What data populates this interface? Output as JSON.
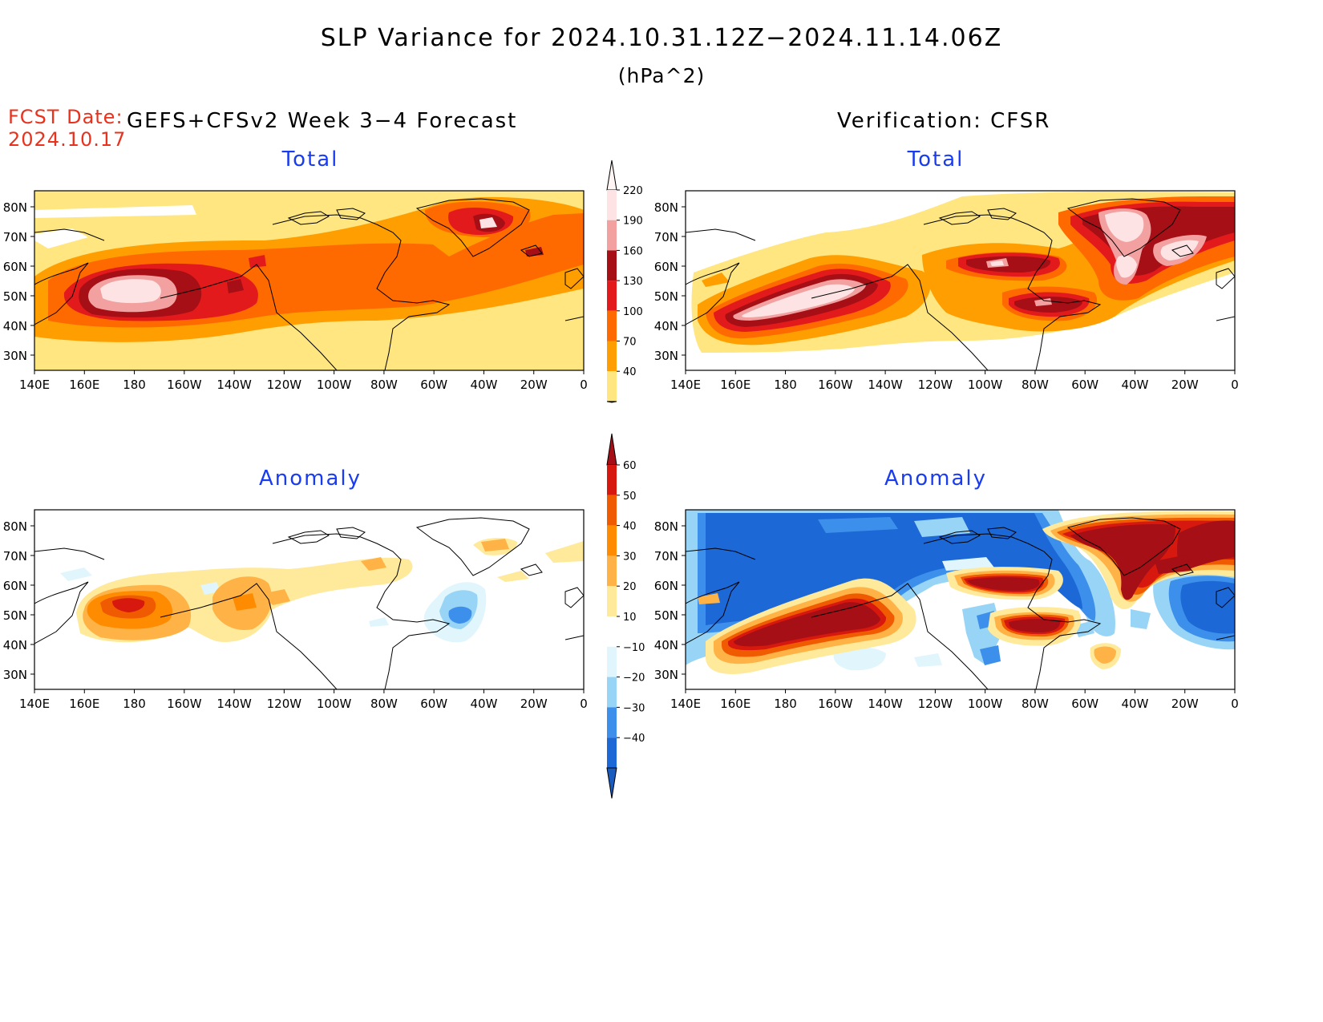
{
  "title": "SLP Variance for 2024.10.31.12Z−2024.11.14.06Z",
  "units": "(hPa^2)",
  "fcst_date_label": "FCST Date:",
  "fcst_date_value": "2024.10.17",
  "forecast_header": "GEFS+CFSv2 Week 3−4 Forecast",
  "verification_header": "Verification: CFSR",
  "panels": [
    {
      "id": "fcst-total",
      "title": "Total"
    },
    {
      "id": "verif-total",
      "title": "Total"
    },
    {
      "id": "fcst-anomaly",
      "title": "Anomaly"
    },
    {
      "id": "verif-anomaly",
      "title": "Anomaly"
    }
  ],
  "lat_labels": [
    "80N",
    "70N",
    "60N",
    "50N",
    "40N",
    "30N"
  ],
  "lon_labels": [
    "140E",
    "160E",
    "180",
    "160W",
    "140W",
    "120W",
    "100W",
    "80W",
    "60W",
    "40W",
    "20W",
    "0"
  ],
  "total_colorbar": {
    "labels": [
      "220",
      "190",
      "160",
      "130",
      "100",
      "70",
      "40"
    ],
    "colors": [
      "#fde3e3",
      "#f2a0a0",
      "#a50f15",
      "#e31a1c",
      "#ff6a00",
      "#ff9e00",
      "#ffe680"
    ]
  },
  "anomaly_colorbar": {
    "labels": [
      "60",
      "50",
      "40",
      "30",
      "20",
      "10",
      "−10",
      "−20",
      "−30",
      "−40"
    ],
    "colors": [
      "#a50f15",
      "#d7180e",
      "#f05a00",
      "#ff8c00",
      "#ffb347",
      "#ffe99a",
      "#ffffff",
      "#e1f6fc",
      "#98d4f5",
      "#3c8fea",
      "#1c68d6",
      "#1a5bbf"
    ]
  }
}
